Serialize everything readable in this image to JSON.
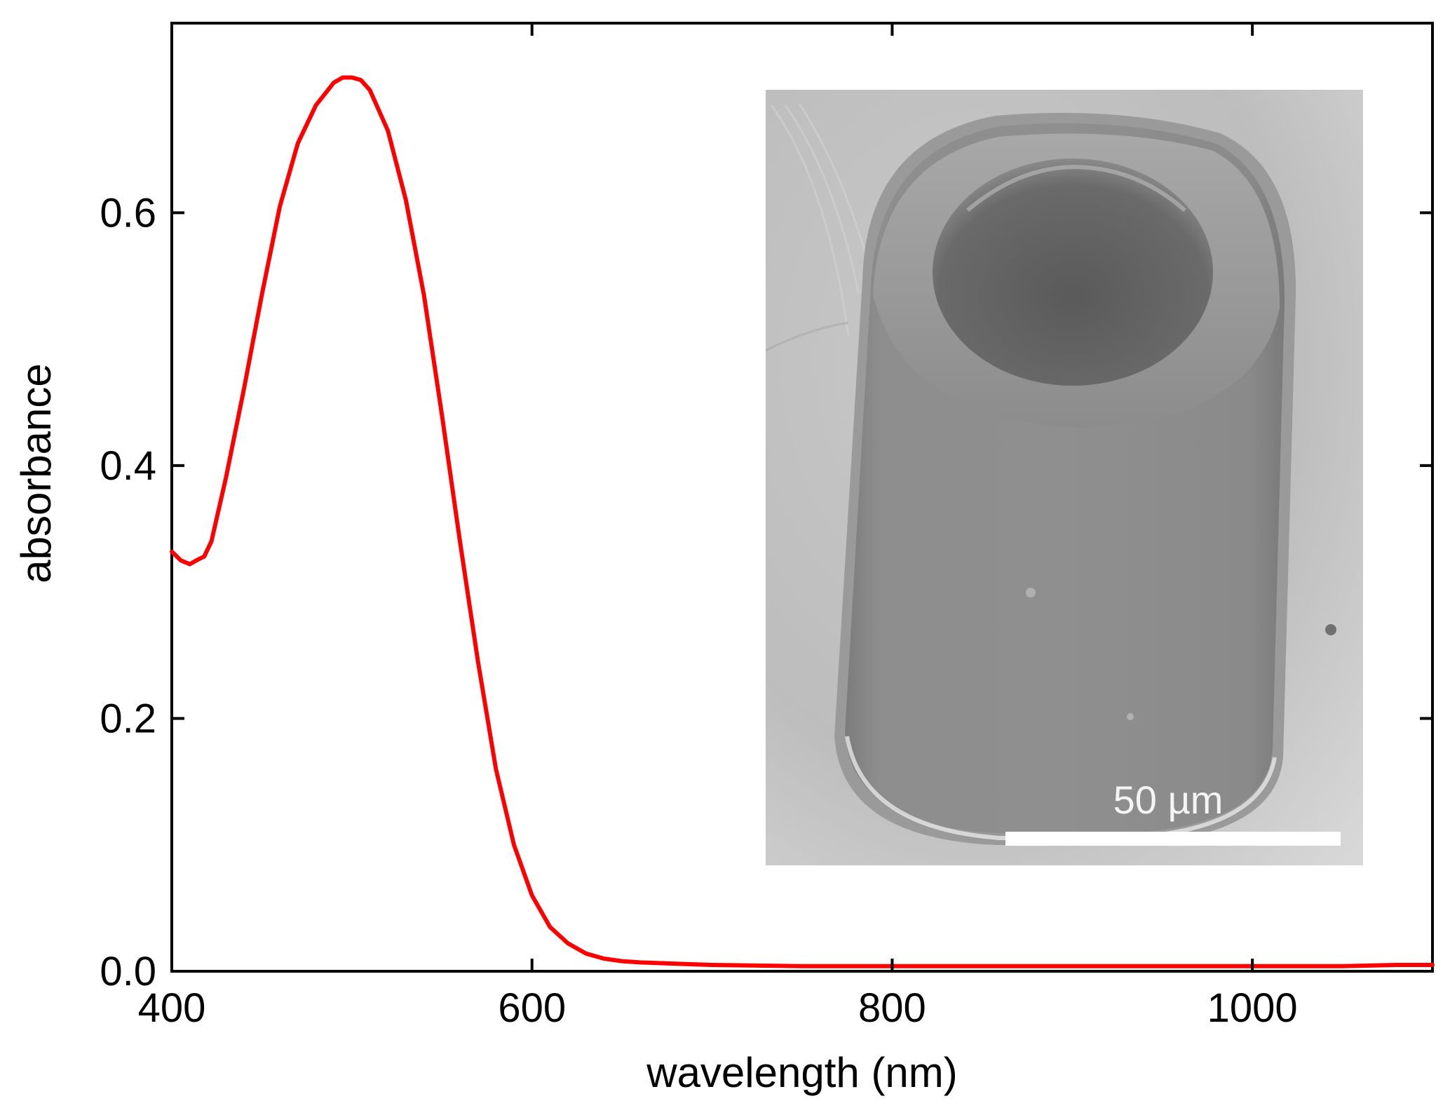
{
  "chart_data": {
    "type": "line",
    "xlabel": "wavelength (nm)",
    "ylabel": "absorbance",
    "xlim": [
      400,
      1100
    ],
    "ylim": [
      0,
      0.75
    ],
    "x_ticks": [
      400,
      600,
      800,
      1000
    ],
    "y_ticks": [
      0.0,
      0.2,
      0.4,
      0.6
    ],
    "x_tick_labels": [
      "400",
      "600",
      "800",
      "1000"
    ],
    "y_tick_labels": [
      "0.0",
      "0.2",
      "0.4",
      "0.6"
    ],
    "grid": false,
    "series": [
      {
        "color": "#ff0000",
        "x": [
          400,
          405,
          410,
          415,
          418,
          422,
          430,
          440,
          450,
          460,
          470,
          480,
          490,
          495,
          500,
          505,
          510,
          520,
          530,
          540,
          550,
          560,
          570,
          580,
          590,
          600,
          610,
          620,
          630,
          640,
          650,
          660,
          680,
          700,
          750,
          800,
          850,
          900,
          950,
          1000,
          1050,
          1080,
          1100
        ],
        "y": [
          0.332,
          0.325,
          0.322,
          0.326,
          0.328,
          0.34,
          0.39,
          0.46,
          0.535,
          0.605,
          0.655,
          0.685,
          0.703,
          0.707,
          0.707,
          0.705,
          0.697,
          0.665,
          0.61,
          0.535,
          0.44,
          0.34,
          0.245,
          0.16,
          0.1,
          0.06,
          0.035,
          0.022,
          0.014,
          0.01,
          0.008,
          0.007,
          0.006,
          0.005,
          0.004,
          0.004,
          0.004,
          0.004,
          0.004,
          0.004,
          0.004,
          0.005,
          0.005
        ]
      }
    ]
  },
  "inset": {
    "scale_bar_label": "50 µm"
  }
}
